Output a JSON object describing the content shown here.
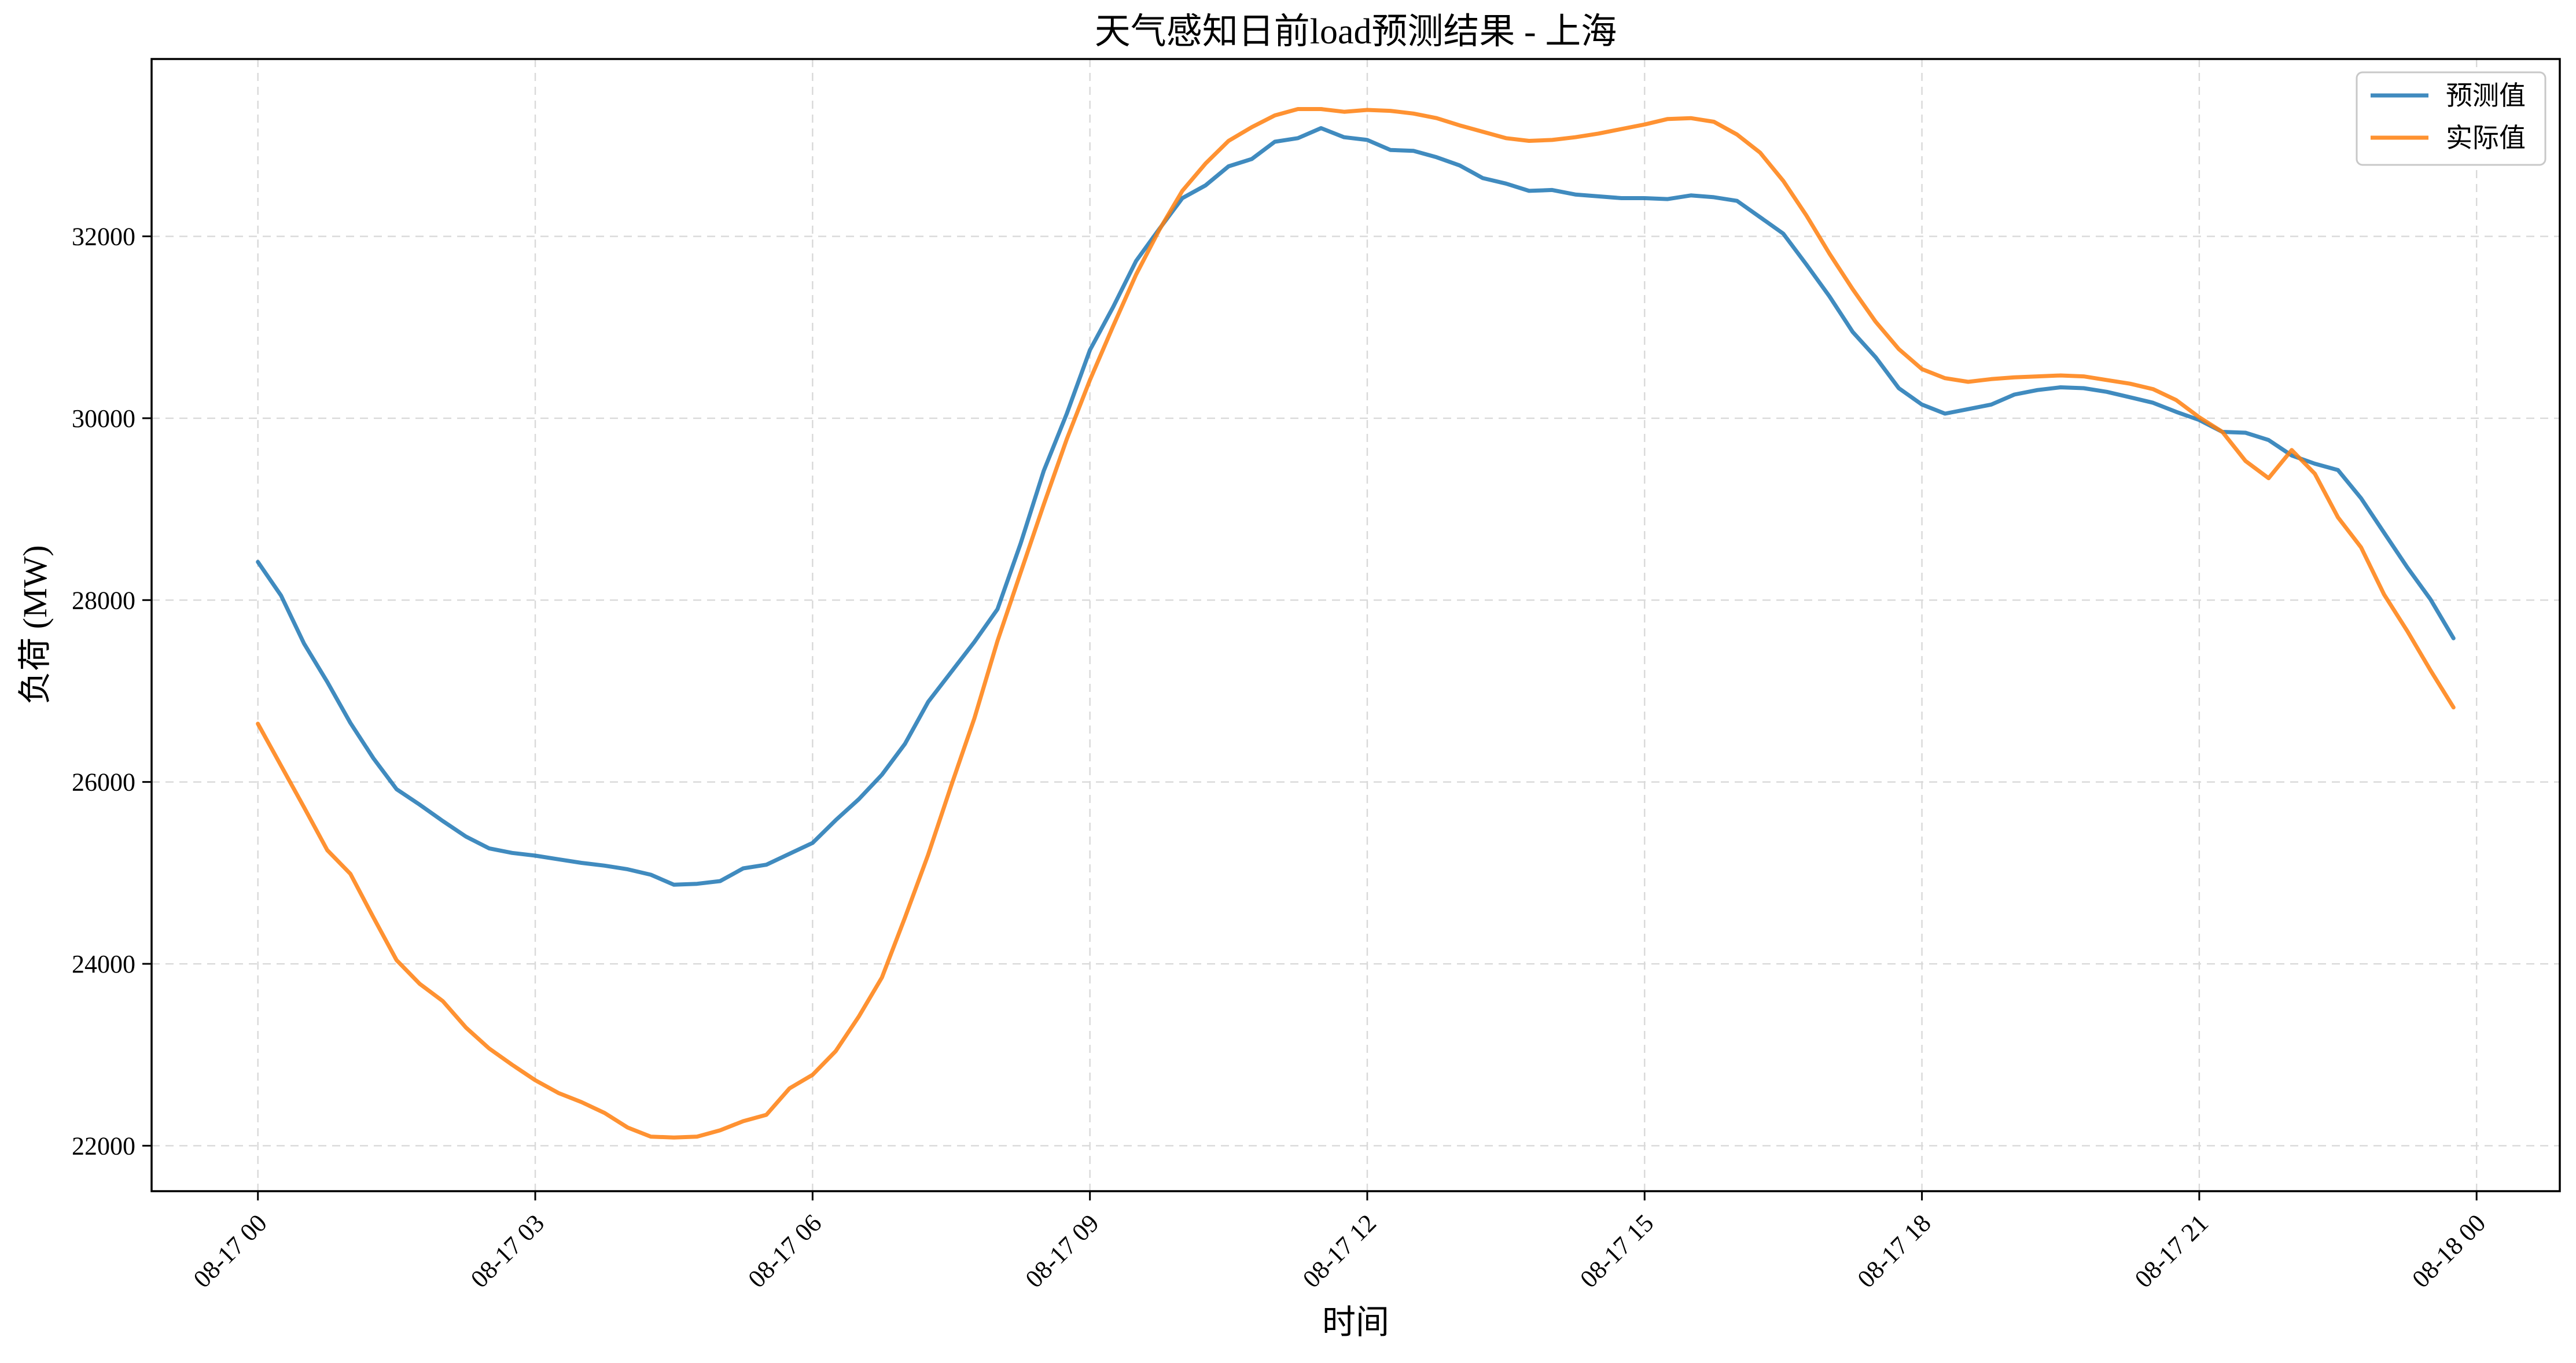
{
  "chart_data": {
    "type": "line",
    "title": "天气感知日前load预测结果 - 上海",
    "xlabel": "时间",
    "ylabel": "负荷 (MW)",
    "x_tick_labels": [
      "08-17 00",
      "08-17 03",
      "08-17 06",
      "08-17 09",
      "08-17 12",
      "08-17 15",
      "08-17 18",
      "08-17 21",
      "08-18 00"
    ],
    "y_ticks": [
      22000,
      24000,
      26000,
      28000,
      30000,
      32000
    ],
    "x_range_hours": [
      -1.15,
      24.9
    ],
    "ylim": [
      21500,
      33950
    ],
    "grid": true,
    "legend_position": "top-right",
    "x_unit": "hours from 08-17 00:00",
    "series": [
      {
        "name": "预测值",
        "color": "#1f77b4",
        "x": [
          0,
          0.25,
          0.5,
          0.75,
          1.0,
          1.25,
          1.5,
          1.75,
          2.0,
          2.25,
          2.5,
          2.75,
          3.0,
          3.25,
          3.5,
          3.75,
          4.0,
          4.25,
          4.5,
          4.75,
          5.0,
          5.25,
          5.5,
          5.75,
          6.0,
          6.25,
          6.5,
          6.75,
          7.0,
          7.25,
          7.5,
          7.75,
          8.0,
          8.25,
          8.5,
          8.75,
          9.0,
          9.25,
          9.5,
          9.75,
          10.0,
          10.25,
          10.5,
          10.75,
          11.0,
          11.25,
          11.5,
          11.75,
          12.0,
          12.25,
          12.5,
          12.75,
          13.0,
          13.25,
          13.5,
          13.75,
          14.0,
          14.25,
          14.5,
          14.75,
          15.0,
          15.25,
          15.5,
          15.75,
          16.0,
          16.25,
          16.5,
          16.75,
          17.0,
          17.25,
          17.5,
          17.75,
          18.0,
          18.25,
          18.5,
          18.75,
          19.0,
          19.25,
          19.5,
          19.75,
          20.0,
          20.25,
          20.5,
          20.75,
          21.0,
          21.25,
          21.5,
          21.75,
          22.0,
          22.25,
          22.5,
          22.75,
          23.0,
          23.25,
          23.5,
          23.75
        ],
        "values": [
          28420,
          28050,
          27520,
          27100,
          26650,
          26260,
          25920,
          25750,
          25570,
          25400,
          25270,
          25220,
          25190,
          25150,
          25110,
          25080,
          25040,
          24980,
          24870,
          24880,
          24910,
          25050,
          25090,
          25210,
          25330,
          25580,
          25810,
          26080,
          26420,
          26880,
          27210,
          27540,
          27900,
          28620,
          29420,
          30050,
          30750,
          31220,
          31730,
          32080,
          32420,
          32560,
          32770,
          32850,
          33040,
          33080,
          33190,
          33090,
          33060,
          32950,
          32940,
          32870,
          32780,
          32640,
          32580,
          32500,
          32510,
          32460,
          32440,
          32420,
          32420,
          32410,
          32450,
          32430,
          32390,
          32210,
          32030,
          31690,
          31340,
          30950,
          30670,
          30330,
          30150,
          30050,
          30100,
          30150,
          30260,
          30310,
          30340,
          30330,
          30290,
          30230,
          30170,
          30070,
          29980,
          29850,
          29840,
          29760,
          29590,
          29500,
          29430,
          29120,
          28740,
          28360,
          28010,
          27580
        ]
      },
      {
        "name": "实际值",
        "color": "#ff7f0e",
        "x": [
          0,
          0.25,
          0.5,
          0.75,
          1.0,
          1.25,
          1.5,
          1.75,
          2.0,
          2.25,
          2.5,
          2.75,
          3.0,
          3.25,
          3.5,
          3.75,
          4.0,
          4.25,
          4.5,
          4.75,
          5.0,
          5.25,
          5.5,
          5.75,
          6.0,
          6.25,
          6.5,
          6.75,
          7.0,
          7.25,
          7.5,
          7.75,
          8.0,
          8.25,
          8.5,
          8.75,
          9.0,
          9.25,
          9.5,
          9.75,
          10.0,
          10.25,
          10.5,
          10.75,
          11.0,
          11.25,
          11.5,
          11.75,
          12.0,
          12.25,
          12.5,
          12.75,
          13.0,
          13.25,
          13.5,
          13.75,
          14.0,
          14.25,
          14.5,
          14.75,
          15.0,
          15.25,
          15.5,
          15.75,
          16.0,
          16.25,
          16.5,
          16.75,
          17.0,
          17.25,
          17.5,
          17.75,
          18.0,
          18.25,
          18.5,
          18.75,
          19.0,
          19.25,
          19.5,
          19.75,
          20.0,
          20.25,
          20.5,
          20.75,
          21.0,
          21.25,
          21.5,
          21.75,
          22.0,
          22.25,
          22.5,
          22.75,
          23.0,
          23.25,
          23.5,
          23.75
        ],
        "values": [
          26640,
          26180,
          25720,
          25250,
          24990,
          24510,
          24040,
          23780,
          23590,
          23300,
          23070,
          22890,
          22720,
          22580,
          22480,
          22360,
          22200,
          22100,
          22090,
          22100,
          22170,
          22270,
          22340,
          22630,
          22780,
          23040,
          23420,
          23850,
          24510,
          25200,
          25960,
          26700,
          27550,
          28300,
          29050,
          29770,
          30420,
          31010,
          31580,
          32070,
          32500,
          32800,
          33050,
          33200,
          33330,
          33400,
          33400,
          33370,
          33390,
          33380,
          33350,
          33300,
          33220,
          33150,
          33080,
          33050,
          33060,
          33090,
          33130,
          33180,
          33230,
          33290,
          33300,
          33260,
          33120,
          32920,
          32610,
          32230,
          31810,
          31420,
          31060,
          30760,
          30540,
          30440,
          30400,
          30430,
          30450,
          30460,
          30470,
          30460,
          30420,
          30380,
          30320,
          30200,
          30010,
          29850,
          29530,
          29340,
          29650,
          29390,
          28910,
          28580,
          28060,
          27660,
          27230,
          26820
        ]
      }
    ]
  }
}
